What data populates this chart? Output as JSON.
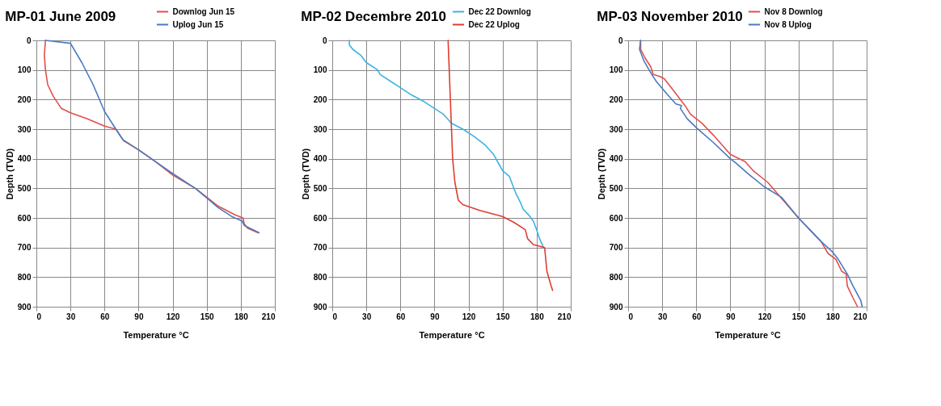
{
  "chart_data": [
    {
      "type": "line",
      "title": "MP-01  June 2009",
      "xlabel": "Temperature °C",
      "ylabel": "Depth (TVD)",
      "xlim": [
        0,
        210
      ],
      "ylim": [
        900,
        0
      ],
      "xticks": [
        0,
        30,
        60,
        90,
        120,
        150,
        180,
        210
      ],
      "yticks": [
        0,
        100,
        200,
        300,
        400,
        500,
        600,
        700,
        800,
        900
      ],
      "grid": true,
      "legend": "top right",
      "series": [
        {
          "name": "Downlog Jun 15",
          "color": "#e0504a",
          "x": [
            8,
            7,
            8,
            10,
            15,
            22,
            30,
            45,
            60,
            70,
            77,
            90,
            105,
            120,
            140,
            160,
            175,
            182,
            183,
            186,
            195
          ],
          "values": [
            0,
            50,
            100,
            150,
            190,
            230,
            245,
            265,
            290,
            300,
            340,
            370,
            410,
            455,
            500,
            560,
            590,
            600,
            620,
            635,
            650
          ]
        },
        {
          "name": "Uplog Jun 15",
          "color": "#4a78c0",
          "x": [
            8,
            30,
            40,
            50,
            60,
            70,
            76,
            90,
            105,
            120,
            140,
            160,
            172,
            181,
            183,
            188,
            196
          ],
          "values": [
            0,
            10,
            75,
            150,
            240,
            300,
            335,
            370,
            410,
            450,
            500,
            565,
            595,
            610,
            625,
            635,
            650
          ]
        }
      ]
    },
    {
      "type": "line",
      "title": "MP-02   Decembre 2010",
      "xlabel": "Temperature °C",
      "ylabel": "Depth (TVD)",
      "xlim": [
        0,
        210
      ],
      "ylim": [
        900,
        0
      ],
      "xticks": [
        0,
        30,
        60,
        90,
        120,
        150,
        180,
        210
      ],
      "yticks": [
        0,
        100,
        200,
        300,
        400,
        500,
        600,
        700,
        800,
        900
      ],
      "grid": true,
      "legend": "top right",
      "series": [
        {
          "name": "Dec 22 Downlog",
          "color": "#3bb4e0",
          "x": [
            15,
            15,
            18,
            25,
            30,
            40,
            42,
            50,
            60,
            70,
            80,
            90,
            98,
            105,
            115,
            125,
            135,
            142,
            147,
            150,
            156,
            159,
            162,
            166,
            168,
            173,
            177,
            180,
            182,
            186
          ],
          "values": [
            0,
            15,
            30,
            50,
            75,
            100,
            115,
            135,
            160,
            185,
            205,
            230,
            250,
            280,
            300,
            325,
            355,
            385,
            420,
            440,
            460,
            490,
            520,
            550,
            570,
            590,
            610,
            640,
            665,
            700
          ]
        },
        {
          "name": "Dec 22 Uplog",
          "color": "#e03c30",
          "x": [
            102,
            103,
            104,
            105,
            106,
            108,
            111,
            115,
            130,
            150,
            160,
            170,
            172,
            177,
            187,
            189,
            192,
            194
          ],
          "values": [
            0,
            100,
            200,
            300,
            400,
            480,
            540,
            555,
            575,
            595,
            615,
            640,
            670,
            690,
            700,
            780,
            820,
            845
          ]
        }
      ]
    },
    {
      "type": "line",
      "title": "MP-03   November 2010",
      "xlabel": "Temperature °C",
      "ylabel": "Depth (TVD)",
      "xlim": [
        0,
        210
      ],
      "ylim": [
        900,
        0
      ],
      "xticks": [
        0,
        30,
        60,
        90,
        120,
        150,
        180,
        210
      ],
      "yticks": [
        0,
        100,
        200,
        300,
        400,
        500,
        600,
        700,
        800,
        900
      ],
      "grid": true,
      "legend": "top right",
      "series": [
        {
          "name": "Nov 8 Downlog",
          "color": "#e0504a",
          "x": [
            11,
            11,
            15,
            20,
            22,
            28,
            32,
            40,
            50,
            55,
            65,
            75,
            90,
            103,
            110,
            123,
            132,
            150,
            170,
            176,
            183,
            188,
            192,
            193,
            198,
            202
          ],
          "values": [
            0,
            30,
            60,
            90,
            115,
            122,
            130,
            170,
            220,
            250,
            280,
            320,
            385,
            410,
            440,
            480,
            520,
            600,
            680,
            720,
            740,
            780,
            790,
            830,
            870,
            900
          ]
        },
        {
          "name": "Nov 8 Uplog",
          "color": "#4a78c0",
          "x": [
            11,
            10,
            14,
            20,
            25,
            35,
            42,
            47,
            46,
            52,
            60,
            75,
            90,
            95,
            107,
            120,
            135,
            150,
            170,
            180,
            185,
            193,
            198,
            205,
            206
          ],
          "values": [
            0,
            30,
            70,
            110,
            140,
            185,
            215,
            220,
            230,
            265,
            295,
            345,
            400,
            415,
            455,
            495,
            530,
            600,
            680,
            715,
            740,
            790,
            830,
            880,
            900
          ]
        }
      ]
    }
  ]
}
